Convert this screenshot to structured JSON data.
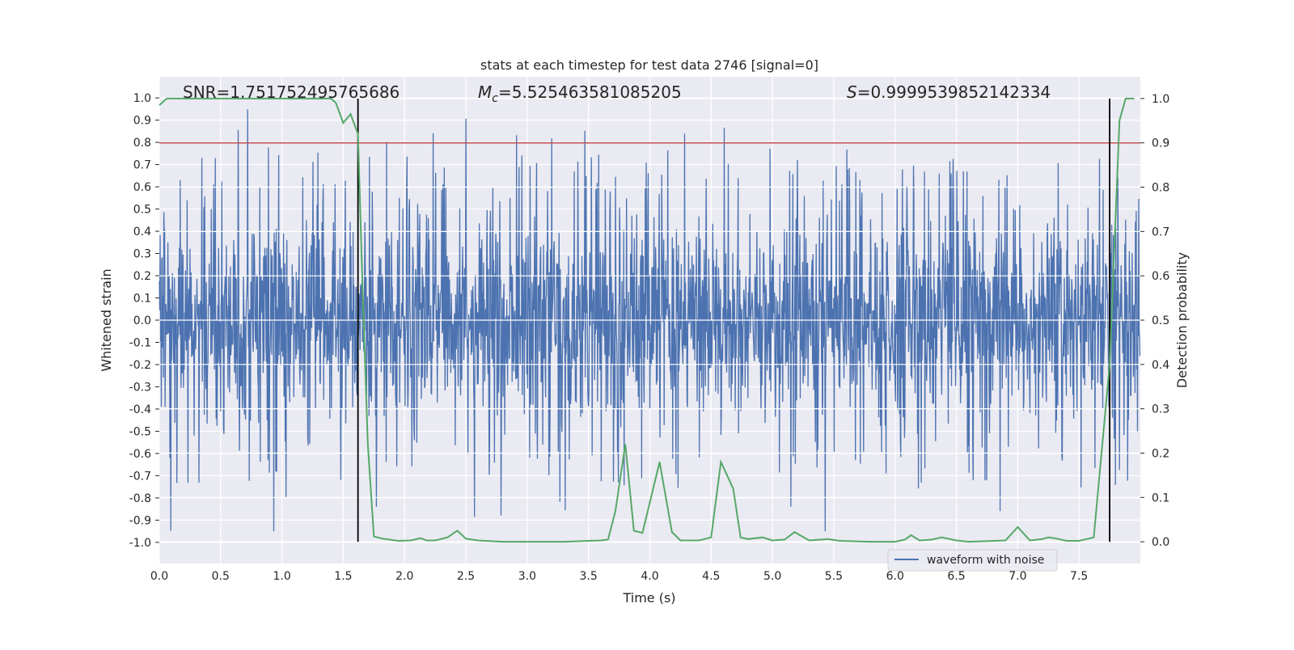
{
  "chart_data": {
    "type": "line",
    "title": "stats at each timestep for test data 2746 [signal=0]",
    "xlabel": "Time (s)",
    "ylabel": "Whitened strain",
    "ylabel_right": "Detection probability",
    "xlim": [
      0,
      8
    ],
    "ylim": [
      -1.095,
      1.095
    ],
    "ylim_right": [
      -0.049,
      1.049
    ],
    "xticks": [
      "0.0",
      "0.5",
      "1.0",
      "1.5",
      "2.0",
      "2.5",
      "3.0",
      "3.5",
      "4.0",
      "4.5",
      "5.0",
      "5.5",
      "6.0",
      "6.5",
      "7.0",
      "7.5"
    ],
    "yticks": [
      "1.0",
      "0.9",
      "0.8",
      "0.7",
      "0.6",
      "0.5",
      "0.4",
      "0.3",
      "0.2",
      "0.1",
      "0.0",
      "-0.1",
      "-0.2",
      "-0.3",
      "-0.4",
      "-0.5",
      "-0.6",
      "-0.7",
      "-0.8",
      "-0.9",
      "-1.0"
    ],
    "yticks_right": [
      "1.0",
      "0.9",
      "0.8",
      "0.7",
      "0.6",
      "0.5",
      "0.4",
      "0.3",
      "0.2",
      "0.1",
      "0.0"
    ],
    "grid": true,
    "annotations": {
      "snr": "SNR=1.751752495765686",
      "mc_symbol": "M",
      "mc_sub": "c",
      "mc_value": "=5.525463581085205",
      "s_symbol": "S",
      "s_value": "=0.9999539852142334"
    },
    "legend": {
      "placement": "lower-right",
      "entries": [
        "waveform with noise"
      ]
    },
    "series": [
      {
        "name": "waveform with noise",
        "axis": "left",
        "color": "#4c72b0",
        "kind": "noise-waveform"
      },
      {
        "name": "detection probability",
        "axis": "right",
        "color": "#55a868",
        "x": [
          0.0,
          0.06,
          1.4,
          1.44,
          1.5,
          1.56,
          1.62,
          1.66,
          1.7,
          1.75,
          1.82,
          1.95,
          2.05,
          2.13,
          2.18,
          2.25,
          2.35,
          2.43,
          2.5,
          2.6,
          2.8,
          3.3,
          3.5,
          3.6,
          3.66,
          3.72,
          3.8,
          3.87,
          3.94,
          4.08,
          4.18,
          4.25,
          4.4,
          4.5,
          4.58,
          4.68,
          4.74,
          4.8,
          4.92,
          5.0,
          5.1,
          5.18,
          5.3,
          5.45,
          5.55,
          5.8,
          6.0,
          6.08,
          6.13,
          6.2,
          6.3,
          6.38,
          6.5,
          6.6,
          6.9,
          7.0,
          7.1,
          7.2,
          7.25,
          7.3,
          7.4,
          7.5,
          7.62,
          7.75,
          7.83,
          7.88,
          7.95
        ],
        "y": [
          0.985,
          1.0,
          1.0,
          0.99,
          0.945,
          0.965,
          0.92,
          0.55,
          0.22,
          0.012,
          0.007,
          0.002,
          0.003,
          0.008,
          0.003,
          0.003,
          0.01,
          0.025,
          0.007,
          0.003,
          0.0,
          0.0,
          0.002,
          0.003,
          0.005,
          0.07,
          0.22,
          0.025,
          0.02,
          0.18,
          0.022,
          0.003,
          0.003,
          0.01,
          0.18,
          0.12,
          0.01,
          0.006,
          0.01,
          0.003,
          0.005,
          0.022,
          0.003,
          0.006,
          0.002,
          0.0,
          0.0,
          0.005,
          0.015,
          0.003,
          0.005,
          0.01,
          0.003,
          0.0,
          0.003,
          0.033,
          0.003,
          0.006,
          0.01,
          0.008,
          0.002,
          0.002,
          0.01,
          0.4,
          0.95,
          1.0,
          1.0
        ]
      },
      {
        "name": "threshold",
        "axis": "right",
        "color": "#c44e52",
        "value": 0.9
      },
      {
        "name": "detection bounds",
        "axis": "right",
        "color": "#000000",
        "x": [
          1.62,
          7.75
        ],
        "yrange": [
          0,
          1
        ]
      }
    ]
  }
}
